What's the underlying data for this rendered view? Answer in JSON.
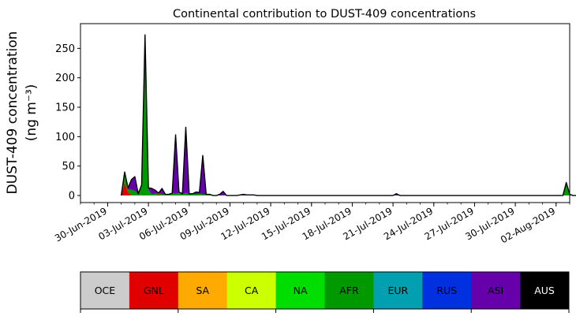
{
  "chart_data": {
    "type": "area",
    "stacked": true,
    "title": "Continental contribution to DUST-409 concentrations",
    "ylabel_line1": "DUST-409 concentration",
    "ylabel_line2": "(ng m⁻³)",
    "xlabel": "",
    "x_start_date": "01-Jul-2019",
    "x_step_days": 0.25,
    "xlim_dates": [
      "28-Jun-2019",
      "03-Aug-2019"
    ],
    "ylim": [
      -12,
      292
    ],
    "yticks": [
      0,
      50,
      100,
      150,
      200,
      250
    ],
    "xtick_labels": [
      "30-Jun-2019",
      "03-Jul-2019",
      "06-Jul-2019",
      "09-Jul-2019",
      "12-Jul-2019",
      "15-Jul-2019",
      "18-Jul-2019",
      "21-Jul-2019",
      "24-Jul-2019",
      "27-Jul-2019",
      "30-Jul-2019",
      "02-Aug-2019"
    ],
    "grid": false,
    "series": [
      {
        "name": "GNL",
        "color": "#e00000",
        "values": [
          0,
          22,
          5,
          0,
          0,
          0,
          0,
          0,
          0,
          0,
          0,
          2,
          0,
          0,
          0,
          0,
          0,
          0,
          0,
          0,
          0,
          0,
          0,
          0,
          0,
          0,
          0,
          0,
          0,
          0,
          0,
          0,
          0,
          0,
          0,
          0,
          0,
          0,
          0,
          0,
          0,
          0,
          0,
          0,
          0,
          0,
          0,
          0,
          0,
          0,
          0,
          0,
          0,
          0,
          0,
          0,
          0,
          0,
          0,
          0,
          0,
          0,
          0,
          0,
          0,
          0,
          0,
          0,
          0,
          0,
          0,
          0,
          0,
          0,
          0,
          0,
          0,
          0,
          0,
          0,
          0,
          0,
          0,
          0,
          0,
          0,
          0,
          0,
          0,
          0,
          0,
          0,
          0,
          0,
          0,
          0,
          0,
          0,
          0,
          0,
          0,
          0,
          0,
          0,
          0,
          0,
          0,
          0,
          0,
          0,
          0,
          0,
          0,
          0,
          0,
          0,
          0,
          0,
          0,
          0,
          0,
          0,
          0,
          0,
          0,
          0,
          0,
          0,
          0,
          0,
          0,
          0,
          0,
          0,
          0,
          0,
          0,
          0,
          0,
          0,
          0,
          0,
          0,
          0,
          0
        ]
      },
      {
        "name": "SA",
        "color": "#ffaa00",
        "values": [
          0,
          0,
          0,
          0,
          0,
          0,
          0,
          0,
          0,
          0,
          0,
          0,
          0,
          0,
          0,
          0,
          0,
          0,
          0,
          0,
          0,
          0,
          0,
          0,
          0,
          0,
          0,
          0,
          0,
          0,
          0,
          0,
          0,
          0,
          0,
          0,
          0,
          0,
          0,
          0,
          0,
          0,
          0,
          0,
          0,
          0,
          0,
          0,
          0,
          0,
          0,
          0,
          0,
          0,
          0,
          0,
          0,
          0,
          0,
          0,
          0,
          0,
          0,
          0,
          0,
          0,
          0,
          0,
          0,
          0,
          0,
          0,
          0,
          0,
          0,
          0,
          0,
          0,
          0,
          0,
          0,
          0,
          0,
          0,
          0,
          0,
          0,
          0,
          0,
          0,
          0,
          0,
          0,
          0,
          0,
          0,
          0,
          0,
          0,
          0,
          0,
          0,
          0,
          0,
          0,
          0,
          0,
          0,
          0,
          0,
          0,
          0,
          0,
          0,
          0,
          0,
          0,
          0,
          0,
          0,
          0,
          0,
          0,
          0,
          0,
          0,
          0,
          0,
          0,
          0,
          0,
          0,
          0,
          0,
          0,
          0,
          0,
          0,
          0,
          0,
          0,
          0,
          0,
          0,
          0
        ]
      },
      {
        "name": "CA",
        "color": "#ccff00",
        "values": [
          0,
          0,
          0,
          0,
          0,
          0,
          0,
          0,
          0,
          0,
          0,
          0,
          0,
          0,
          0,
          0,
          0,
          0,
          0,
          0,
          0,
          0,
          0,
          0,
          0,
          0,
          0,
          0,
          0,
          0,
          0,
          0,
          0,
          0,
          0,
          0,
          0,
          0,
          0,
          0,
          0,
          0,
          0,
          0,
          0,
          0,
          0,
          0,
          0,
          0,
          0,
          0,
          0,
          0,
          0,
          0,
          0,
          0,
          0,
          0,
          0,
          0,
          0,
          0,
          0,
          0,
          0,
          0,
          0,
          0,
          0,
          0,
          0,
          0,
          0,
          0,
          0,
          0,
          0,
          0,
          0,
          0,
          0,
          0,
          0,
          0,
          0,
          0,
          0,
          0,
          0,
          0,
          0,
          0,
          0,
          0,
          0,
          0,
          0,
          0,
          0,
          0,
          0,
          0,
          0,
          0,
          0,
          0,
          0,
          0,
          0,
          0,
          0,
          0,
          0,
          0,
          0,
          0,
          0,
          0,
          0,
          0,
          0,
          0,
          0,
          0,
          0,
          0,
          0,
          0,
          0,
          0,
          0,
          0,
          0,
          0,
          0,
          0,
          0,
          0,
          0,
          0,
          0,
          0,
          0
        ]
      },
      {
        "name": "NA",
        "color": "#00dd00",
        "values": [
          0,
          0,
          0,
          0,
          0,
          0,
          0,
          0,
          0,
          0,
          0,
          0,
          0,
          0,
          0,
          0,
          0,
          0,
          0,
          0,
          0,
          0,
          0,
          0,
          0,
          0,
          0,
          0,
          0,
          0,
          0,
          0,
          0,
          0,
          0,
          0,
          0,
          0,
          0,
          0,
          0,
          0,
          0,
          0,
          0,
          0,
          0,
          0,
          0,
          0,
          0,
          0,
          0,
          0,
          0,
          0,
          0,
          0,
          0,
          0,
          0,
          0,
          0,
          0,
          0,
          0,
          0,
          0,
          0,
          0,
          0,
          0,
          0,
          0,
          0,
          0,
          0,
          0,
          0,
          0,
          0,
          0,
          0,
          0,
          0,
          0,
          0,
          0,
          0,
          0,
          0,
          0,
          0,
          0,
          0,
          0,
          0,
          0,
          0,
          0,
          0,
          0,
          0,
          0,
          0,
          0,
          0,
          0,
          0,
          0,
          0,
          0,
          0,
          0,
          0,
          0,
          0,
          0,
          0,
          0,
          0,
          0,
          0,
          0,
          0,
          0,
          0,
          0,
          0,
          0,
          0,
          0,
          0,
          0,
          0,
          0,
          0,
          0,
          0,
          0,
          0,
          0,
          0,
          0,
          0
        ]
      },
      {
        "name": "AFR",
        "color": "#009900",
        "values": [
          0,
          17,
          5,
          10,
          8,
          2,
          18,
          270,
          10,
          2,
          3,
          2,
          2,
          2,
          2,
          4,
          3,
          4,
          2,
          4,
          2,
          3,
          2,
          3,
          2,
          2,
          2,
          0,
          0,
          0,
          0,
          0,
          0,
          0,
          0,
          0,
          0,
          0,
          0,
          0,
          0,
          0,
          0,
          0,
          0,
          0,
          0,
          0,
          0,
          0,
          0,
          0,
          0,
          0,
          0,
          0,
          0,
          0,
          0,
          0,
          0,
          0,
          0,
          0,
          0,
          0,
          0,
          0,
          0,
          0,
          0,
          0,
          0,
          0,
          0,
          0,
          0,
          0,
          0,
          0,
          0,
          0,
          0,
          0,
          0,
          0,
          0,
          0,
          0,
          0,
          0,
          0,
          0,
          0,
          0,
          0,
          0,
          0,
          0,
          0,
          0,
          0,
          0,
          0,
          0,
          0,
          0,
          0,
          0,
          0,
          0,
          0,
          0,
          0,
          0,
          0,
          0,
          0,
          0,
          0,
          0,
          0,
          0,
          0,
          0,
          0,
          0,
          0,
          0,
          0,
          0,
          22,
          2,
          0,
          0,
          0,
          0,
          0,
          0,
          0,
          0,
          0,
          0,
          0,
          0
        ]
      },
      {
        "name": "EUR",
        "color": "#00a0b0",
        "values": [
          0,
          0,
          0,
          0,
          0,
          0,
          0,
          0,
          0,
          0,
          0,
          0,
          0,
          0,
          0,
          0,
          0,
          0,
          0,
          0,
          0,
          0,
          0,
          0,
          0,
          0,
          0,
          0,
          0,
          0,
          0,
          0,
          0,
          0,
          0,
          0,
          0,
          0,
          0,
          0,
          0,
          0,
          0,
          0,
          0,
          0,
          0,
          0,
          0,
          0,
          0,
          0,
          0,
          0,
          0,
          0,
          0,
          0,
          0,
          0,
          0,
          0,
          0,
          0,
          0,
          0,
          0,
          0,
          0,
          0,
          0,
          0,
          0,
          0,
          0,
          0,
          0,
          0,
          0,
          0,
          0,
          0,
          0,
          0,
          0,
          0,
          0,
          0,
          0,
          0,
          0,
          0,
          0,
          0,
          0,
          0,
          0,
          0,
          0,
          0,
          0,
          0,
          0,
          0,
          0,
          0,
          0,
          0,
          0,
          0,
          0,
          0,
          0,
          0,
          0,
          0,
          0,
          0,
          0,
          0,
          0,
          0,
          0,
          0,
          0,
          0,
          0,
          0,
          0,
          0,
          0,
          0,
          0,
          0,
          0,
          0,
          0,
          0,
          0,
          0,
          0,
          0,
          0,
          0,
          0
        ]
      },
      {
        "name": "RUS",
        "color": "#0030e0",
        "values": [
          0,
          0,
          0,
          0,
          0,
          0,
          0,
          0,
          0,
          0,
          0,
          0,
          0,
          0,
          0,
          0,
          0,
          0,
          0,
          0,
          0,
          0,
          0,
          0,
          0,
          0,
          0,
          0,
          0,
          0,
          0,
          0,
          0,
          0,
          0,
          0,
          0,
          0,
          0,
          0,
          0,
          0,
          0,
          0,
          0,
          0,
          0,
          0,
          0,
          0,
          0,
          0,
          0,
          0,
          0,
          0,
          0,
          0,
          0,
          0,
          0,
          0,
          0,
          0,
          0,
          0,
          0,
          0,
          0,
          0,
          0,
          0,
          0,
          0,
          0,
          0,
          0,
          0,
          0,
          0,
          0,
          0,
          0,
          0,
          0,
          0,
          0,
          0,
          0,
          0,
          0,
          0,
          0,
          0,
          0,
          0,
          0,
          0,
          0,
          0,
          0,
          0,
          0,
          0,
          0,
          0,
          0,
          0,
          0,
          0,
          0,
          0,
          0,
          0,
          0,
          0,
          0,
          0,
          0,
          0,
          0,
          0,
          0,
          0,
          0,
          0,
          0,
          0,
          0,
          0,
          0,
          0,
          0,
          0,
          0,
          0,
          0,
          0,
          0,
          0,
          0,
          0,
          0,
          0,
          0
        ]
      },
      {
        "name": "ASI",
        "color": "#6600aa",
        "values": [
          0,
          1,
          3,
          17,
          24,
          1,
          0,
          0,
          3,
          10,
          6,
          0,
          10,
          0,
          0,
          0,
          100,
          2,
          1,
          112,
          1,
          0,
          4,
          2,
          66,
          0,
          0,
          0,
          0,
          2,
          7,
          0,
          0,
          0,
          0,
          0,
          2,
          0,
          0,
          0,
          0,
          0,
          0,
          0,
          0,
          0,
          0,
          0,
          0,
          0,
          0,
          0,
          0,
          0,
          0,
          0,
          0,
          0,
          0,
          0,
          0,
          0,
          0,
          0,
          0,
          0,
          0,
          0,
          0,
          0,
          0,
          0,
          0,
          0,
          0,
          0,
          0,
          0,
          0,
          0,
          0,
          3,
          0,
          0,
          0,
          0,
          0,
          0,
          0,
          0,
          0,
          0,
          0,
          0,
          0,
          0,
          0,
          0,
          0,
          0,
          0,
          0,
          0,
          0,
          0,
          0,
          0,
          0,
          0,
          0,
          0,
          0,
          0,
          0,
          0,
          0,
          0,
          0,
          0,
          0,
          0,
          0,
          0,
          0,
          0,
          0,
          0,
          0,
          0,
          0,
          0,
          0,
          0,
          0,
          0,
          0,
          0,
          0,
          0,
          0,
          0,
          0,
          0,
          0,
          0
        ]
      }
    ],
    "total": [
      0,
      40,
      13,
      27,
      32,
      3,
      18,
      273,
      13,
      12,
      9,
      4,
      12,
      2,
      2,
      4,
      103,
      6,
      3,
      116,
      3,
      3,
      6,
      5,
      68,
      2,
      2,
      0,
      0,
      2,
      7,
      0,
      0,
      0,
      0,
      1,
      2,
      1,
      1,
      1,
      0,
      0,
      0,
      0,
      0,
      0,
      0,
      0,
      0,
      0,
      0,
      0,
      0,
      0,
      0,
      0,
      0,
      0,
      0,
      0,
      0,
      0,
      0,
      0,
      0,
      0,
      0,
      0,
      0,
      0,
      0,
      0,
      0,
      0,
      0,
      0,
      0,
      0,
      0,
      0,
      0,
      3,
      0,
      0,
      0,
      0,
      0,
      0,
      0,
      0,
      0,
      0,
      0,
      0,
      0,
      0,
      0,
      0,
      0,
      0,
      0,
      0,
      0,
      0,
      0,
      0,
      0,
      0,
      0,
      0,
      0,
      0,
      0,
      0,
      0,
      0,
      0,
      0,
      0,
      0,
      0,
      0,
      0,
      0,
      0,
      0,
      0,
      0,
      0,
      0,
      0,
      22,
      2,
      0,
      0,
      1,
      1,
      0,
      0,
      0,
      0,
      0,
      0,
      0,
      0
    ],
    "legend": [
      {
        "name": "OCE",
        "color": "#cccccc",
        "text_color": "#000000"
      },
      {
        "name": "GNL",
        "color": "#e00000",
        "text_color": "#000000"
      },
      {
        "name": "SA",
        "color": "#ffaa00",
        "text_color": "#000000"
      },
      {
        "name": "CA",
        "color": "#ccff00",
        "text_color": "#000000"
      },
      {
        "name": "NA",
        "color": "#00dd00",
        "text_color": "#000000"
      },
      {
        "name": "AFR",
        "color": "#009900",
        "text_color": "#000000"
      },
      {
        "name": "EUR",
        "color": "#00a0b0",
        "text_color": "#000000"
      },
      {
        "name": "RUS",
        "color": "#0030e0",
        "text_color": "#000000"
      },
      {
        "name": "ASI",
        "color": "#6600aa",
        "text_color": "#000000"
      },
      {
        "name": "AUS",
        "color": "#000000",
        "text_color": "#ffffff"
      }
    ],
    "legend_placement": "bottom"
  }
}
